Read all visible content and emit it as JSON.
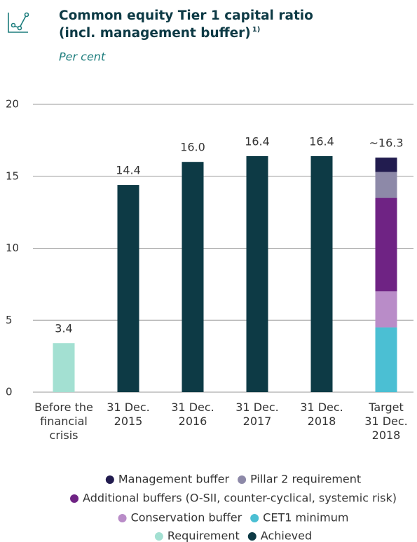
{
  "chart_data": {
    "type": "stacked-bar",
    "title": [
      "Common equity Tier 1 capital ratio",
      "(incl. management buffer)"
    ],
    "title_footnote_mark": "1)",
    "subtitle": "Per cent",
    "categories": [
      [
        "Before the",
        "financial",
        "crisis"
      ],
      [
        "31 Dec.",
        "2015"
      ],
      [
        "31 Dec.",
        "2016"
      ],
      [
        "31 Dec.",
        "2017"
      ],
      [
        "31 Dec.",
        "2018"
      ],
      [
        "Target",
        "31 Dec.",
        "2018"
      ]
    ],
    "series": [
      {
        "name": "Requirement",
        "color": "#a3e0d2",
        "values": [
          3.4,
          null,
          null,
          null,
          null,
          null
        ],
        "value_labels": [
          "3.4",
          null,
          null,
          null,
          null,
          null
        ]
      },
      {
        "name": "Achieved",
        "color": "#0d3a45",
        "values": [
          null,
          14.4,
          16.0,
          16.4,
          16.4,
          null
        ],
        "value_labels": [
          null,
          "14.4",
          "16.0",
          "16.4",
          "16.4",
          null
        ]
      },
      {
        "name": "CET1 minimum",
        "color": "#4bbfd3",
        "values": [
          null,
          null,
          null,
          null,
          null,
          4.5
        ]
      },
      {
        "name": "Conservation buffer",
        "color": "#b98cc8",
        "values": [
          null,
          null,
          null,
          null,
          null,
          2.5
        ]
      },
      {
        "name": "Additional buffers (O-SII, counter-cyclical, systemic risk)",
        "color": "#6f2384",
        "values": [
          null,
          null,
          null,
          null,
          null,
          6.5
        ]
      },
      {
        "name": "Pillar 2 requirement",
        "color": "#8d89a8",
        "values": [
          null,
          null,
          null,
          null,
          null,
          1.8
        ]
      },
      {
        "name": "Management buffer",
        "color": "#221c4f",
        "values": [
          null,
          null,
          null,
          null,
          null,
          1.0
        ]
      }
    ],
    "stack_total_labels": [
      null,
      null,
      null,
      null,
      null,
      "~16.3"
    ],
    "ylim": [
      0,
      20
    ],
    "yticks": [
      0,
      5,
      10,
      15,
      20
    ],
    "grid": true
  }
}
